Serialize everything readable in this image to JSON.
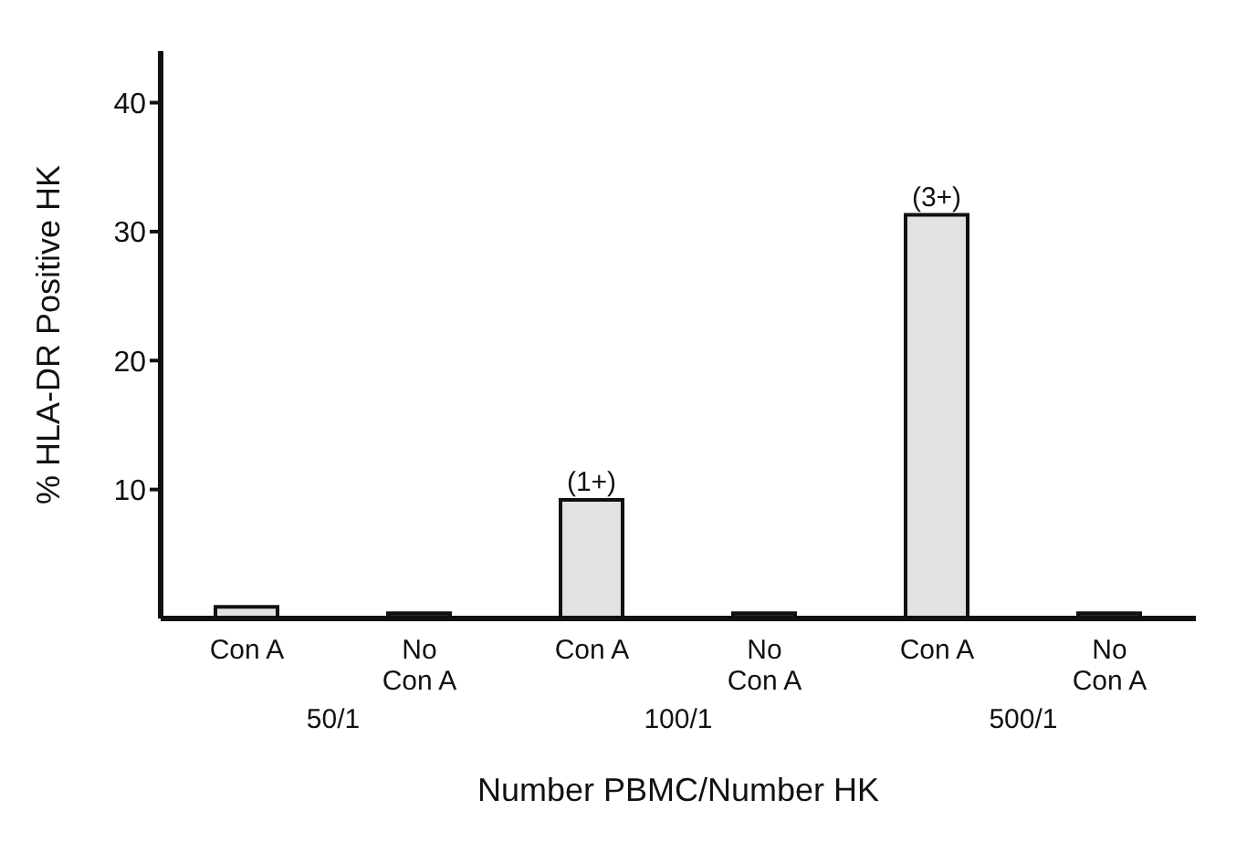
{
  "chart_data": {
    "type": "bar",
    "xlabel": "Number PBMC/Number HK",
    "ylabel": "% HLA-DR Positive HK",
    "categories": [
      "Con A",
      "No Con A",
      "Con A",
      "No Con A",
      "Con A",
      "No Con A"
    ],
    "values": [
      0.9,
      0.4,
      9.2,
      0.4,
      31.3,
      0.4
    ],
    "colors": [
      "#e2e2e2",
      "#333333",
      "#e2e2e2",
      "#333333",
      "#e2e2e2",
      "#333333"
    ],
    "value_labels": [
      null,
      null,
      "(1+)",
      null,
      "(3+)",
      null
    ],
    "ylim": [
      0,
      44
    ],
    "yticks": [
      10,
      20,
      30,
      40
    ],
    "grid": false,
    "annotations": [
      "50/1",
      "100/1",
      "500/1"
    ]
  }
}
